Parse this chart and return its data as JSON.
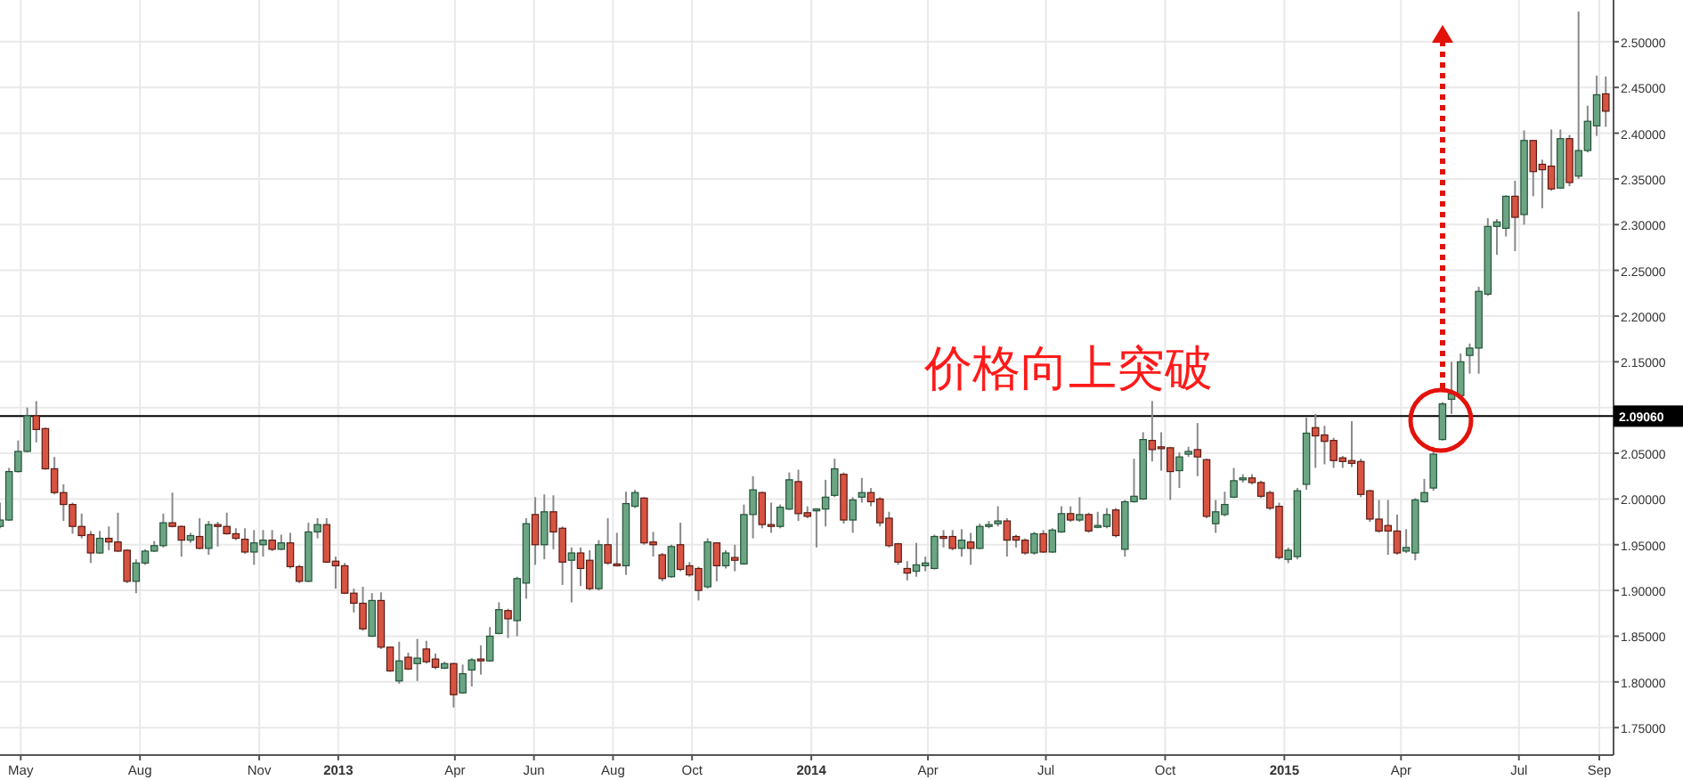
{
  "chart_data": {
    "type": "candlestick",
    "x": [
      "2012-04-15",
      "2012-04-22",
      "2012-04-29",
      "2012-05-06",
      "2012-05-13",
      "2012-05-20",
      "2012-05-27",
      "2012-06-03",
      "2012-06-10",
      "2012-06-17",
      "2012-06-24",
      "2012-07-01",
      "2012-07-08",
      "2012-07-15",
      "2012-07-22",
      "2012-07-29",
      "2012-08-05",
      "2012-08-12",
      "2012-08-19",
      "2012-08-26",
      "2012-09-02",
      "2012-09-09",
      "2012-09-16",
      "2012-09-23",
      "2012-09-30",
      "2012-10-07",
      "2012-10-14",
      "2012-10-21",
      "2012-10-28",
      "2012-11-04",
      "2012-11-11",
      "2012-11-18",
      "2012-11-25",
      "2012-12-02",
      "2012-12-09",
      "2012-12-16",
      "2012-12-23",
      "2012-12-30",
      "2013-01-06",
      "2013-01-13",
      "2013-01-20",
      "2013-01-27",
      "2013-02-03",
      "2013-02-10",
      "2013-02-17",
      "2013-02-24",
      "2013-03-03",
      "2013-03-10",
      "2013-03-17",
      "2013-03-24",
      "2013-03-31",
      "2013-04-07",
      "2013-04-14",
      "2013-04-21",
      "2013-04-28",
      "2013-05-05",
      "2013-05-12",
      "2013-05-19",
      "2013-05-26",
      "2013-06-02",
      "2013-06-09",
      "2013-06-16",
      "2013-06-23",
      "2013-06-30",
      "2013-07-07",
      "2013-07-14",
      "2013-07-21",
      "2013-07-28",
      "2013-08-04",
      "2013-08-11",
      "2013-08-18",
      "2013-08-25",
      "2013-09-01",
      "2013-09-08",
      "2013-09-15",
      "2013-09-22",
      "2013-09-29",
      "2013-10-06",
      "2013-10-13",
      "2013-10-20",
      "2013-10-27",
      "2013-11-03",
      "2013-11-10",
      "2013-11-17",
      "2013-11-24",
      "2013-12-01",
      "2013-12-08",
      "2013-12-15",
      "2013-12-22",
      "2013-12-29",
      "2014-01-05",
      "2014-01-12",
      "2014-01-19",
      "2014-01-26",
      "2014-02-02",
      "2014-02-09",
      "2014-02-16",
      "2014-02-23",
      "2014-03-02",
      "2014-03-09",
      "2014-03-16",
      "2014-03-23",
      "2014-03-30",
      "2014-04-06",
      "2014-04-13",
      "2014-04-20",
      "2014-04-27",
      "2014-05-04",
      "2014-05-11",
      "2014-05-18",
      "2014-05-25",
      "2014-06-01",
      "2014-06-08",
      "2014-06-15",
      "2014-06-22",
      "2014-06-29",
      "2014-07-06",
      "2014-07-13",
      "2014-07-20",
      "2014-07-27",
      "2014-08-03",
      "2014-08-10",
      "2014-08-17",
      "2014-08-24",
      "2014-08-31",
      "2014-09-07",
      "2014-09-14",
      "2014-09-21",
      "2014-09-28",
      "2014-10-05",
      "2014-10-12",
      "2014-10-19",
      "2014-10-26",
      "2014-11-02",
      "2014-11-09",
      "2014-11-16",
      "2014-11-23",
      "2014-11-30",
      "2014-12-07",
      "2014-12-14",
      "2014-12-21",
      "2014-12-28",
      "2015-01-04",
      "2015-01-11",
      "2015-01-18",
      "2015-01-25",
      "2015-02-01",
      "2015-02-08",
      "2015-02-15",
      "2015-02-22",
      "2015-03-01",
      "2015-03-08",
      "2015-03-15",
      "2015-03-22",
      "2015-03-29",
      "2015-04-05",
      "2015-04-12",
      "2015-04-19",
      "2015-04-26",
      "2015-05-03",
      "2015-05-10",
      "2015-05-17",
      "2015-05-24",
      "2015-05-31",
      "2015-06-07",
      "2015-06-14",
      "2015-06-21",
      "2015-06-28",
      "2015-07-05",
      "2015-07-12",
      "2015-07-19",
      "2015-07-26",
      "2015-08-02",
      "2015-08-09",
      "2015-08-16",
      "2015-08-23",
      "2015-08-30",
      "2015-09-06"
    ],
    "ohlc": [
      [
        1.97,
        1.996,
        1.968,
        1.977
      ],
      [
        1.977,
        2.034,
        1.976,
        2.03
      ],
      [
        2.03,
        2.064,
        2.029,
        2.052
      ],
      [
        2.052,
        2.1,
        2.051,
        2.091
      ],
      [
        2.091,
        2.107,
        2.062,
        2.076
      ],
      [
        2.077,
        2.078,
        2.032,
        2.033
      ],
      [
        2.033,
        2.046,
        2.005,
        2.007
      ],
      [
        2.007,
        2.016,
        1.976,
        1.994
      ],
      [
        1.994,
        1.996,
        1.962,
        1.97
      ],
      [
        1.97,
        1.984,
        1.957,
        1.96
      ],
      [
        1.961,
        1.965,
        1.93,
        1.941
      ],
      [
        1.941,
        1.965,
        1.94,
        1.957
      ],
      [
        1.957,
        1.97,
        1.944,
        1.953
      ],
      [
        1.953,
        1.985,
        1.942,
        1.943
      ],
      [
        1.944,
        1.945,
        1.908,
        1.91
      ],
      [
        1.91,
        1.934,
        1.897,
        1.93
      ],
      [
        1.93,
        1.945,
        1.928,
        1.943
      ],
      [
        1.943,
        1.954,
        1.942,
        1.949
      ],
      [
        1.949,
        1.984,
        1.947,
        1.974
      ],
      [
        1.974,
        2.007,
        1.969,
        1.97
      ],
      [
        1.97,
        1.971,
        1.937,
        1.955
      ],
      [
        1.955,
        1.963,
        1.952,
        1.96
      ],
      [
        1.959,
        1.979,
        1.945,
        1.946
      ],
      [
        1.946,
        1.976,
        1.939,
        1.972
      ],
      [
        1.972,
        1.975,
        1.948,
        1.97
      ],
      [
        1.97,
        1.985,
        1.961,
        1.962
      ],
      [
        1.962,
        1.968,
        1.955,
        1.957
      ],
      [
        1.956,
        1.968,
        1.94,
        1.942
      ],
      [
        1.942,
        1.966,
        1.928,
        1.952
      ],
      [
        1.95,
        1.966,
        1.937,
        1.955
      ],
      [
        1.955,
        1.966,
        1.943,
        1.945
      ],
      [
        1.945,
        1.961,
        1.944,
        1.952
      ],
      [
        1.952,
        1.963,
        1.924,
        1.926
      ],
      [
        1.926,
        1.928,
        1.908,
        1.91
      ],
      [
        1.91,
        1.974,
        1.909,
        1.964
      ],
      [
        1.964,
        1.979,
        1.957,
        1.972
      ],
      [
        1.972,
        1.979,
        1.93,
        1.931
      ],
      [
        1.932,
        1.937,
        1.902,
        1.927
      ],
      [
        1.927,
        1.93,
        1.896,
        1.897
      ],
      [
        1.897,
        1.902,
        1.876,
        1.886
      ],
      [
        1.886,
        1.904,
        1.856,
        1.858
      ],
      [
        1.85,
        1.897,
        1.849,
        1.889
      ],
      [
        1.889,
        1.898,
        1.836,
        1.838
      ],
      [
        1.838,
        1.838,
        1.811,
        1.812
      ],
      [
        1.801,
        1.844,
        1.798,
        1.823
      ],
      [
        1.827,
        1.832,
        1.813,
        1.814
      ],
      [
        1.82,
        1.847,
        1.801,
        1.826
      ],
      [
        1.836,
        1.845,
        1.82,
        1.822
      ],
      [
        1.825,
        1.831,
        1.814,
        1.816
      ],
      [
        1.815,
        1.822,
        1.814,
        1.82
      ],
      [
        1.82,
        1.821,
        1.772,
        1.786
      ],
      [
        1.788,
        1.819,
        1.787,
        1.809
      ],
      [
        1.813,
        1.826,
        1.795,
        1.824
      ],
      [
        1.825,
        1.84,
        1.808,
        1.823
      ],
      [
        1.823,
        1.86,
        1.822,
        1.85
      ],
      [
        1.853,
        1.887,
        1.852,
        1.879
      ],
      [
        1.878,
        1.88,
        1.848,
        1.869
      ],
      [
        1.867,
        1.915,
        1.85,
        1.913
      ],
      [
        1.908,
        1.979,
        1.891,
        1.973
      ],
      [
        1.983,
        2.002,
        1.928,
        1.95
      ],
      [
        1.95,
        2.005,
        1.934,
        1.986
      ],
      [
        1.986,
        2.004,
        1.945,
        1.964
      ],
      [
        1.968,
        1.97,
        1.906,
        1.931
      ],
      [
        1.933,
        1.947,
        1.887,
        1.941
      ],
      [
        1.941,
        1.947,
        1.905,
        1.924
      ],
      [
        1.933,
        1.944,
        1.9,
        1.902
      ],
      [
        1.902,
        1.955,
        1.9,
        1.95
      ],
      [
        1.95,
        1.979,
        1.928,
        1.93
      ],
      [
        1.929,
        1.963,
        1.926,
        1.927
      ],
      [
        1.927,
        2.008,
        1.917,
        1.995
      ],
      [
        1.992,
        2.01,
        1.99,
        2.007
      ],
      [
        2.001,
        2.002,
        1.95,
        1.952
      ],
      [
        1.953,
        1.964,
        1.937,
        1.95
      ],
      [
        1.939,
        1.941,
        1.91,
        1.913
      ],
      [
        1.915,
        1.95,
        1.914,
        1.948
      ],
      [
        1.95,
        1.974,
        1.921,
        1.923
      ],
      [
        1.927,
        1.931,
        1.915,
        1.917
      ],
      [
        1.924,
        1.926,
        1.889,
        1.9
      ],
      [
        1.904,
        1.957,
        1.902,
        1.953
      ],
      [
        1.952,
        1.952,
        1.91,
        1.927
      ],
      [
        1.927,
        1.944,
        1.924,
        1.941
      ],
      [
        1.936,
        1.95,
        1.921,
        1.933
      ],
      [
        1.929,
        1.994,
        1.928,
        1.983
      ],
      [
        1.983,
        2.025,
        1.957,
        2.01
      ],
      [
        2.007,
        2.008,
        1.968,
        1.972
      ],
      [
        1.972,
        1.996,
        1.963,
        1.97
      ],
      [
        1.97,
        1.994,
        1.968,
        1.991
      ],
      [
        1.989,
        2.029,
        1.988,
        2.021
      ],
      [
        2.019,
        2.032,
        1.976,
        1.984
      ],
      [
        1.985,
        1.992,
        1.979,
        1.981
      ],
      [
        1.988,
        1.99,
        1.947,
        1.989
      ],
      [
        1.989,
        2.021,
        1.97,
        2.002
      ],
      [
        2.004,
        2.044,
        2.002,
        2.033
      ],
      [
        2.027,
        2.029,
        1.973,
        1.977
      ],
      [
        1.977,
        2.002,
        1.963,
        1.999
      ],
      [
        2.002,
        2.023,
        1.996,
        2.007
      ],
      [
        2.007,
        2.012,
        1.992,
        1.997
      ],
      [
        2.0,
        2.002,
        1.97,
        1.974
      ],
      [
        1.979,
        1.986,
        1.947,
        1.949
      ],
      [
        1.951,
        1.952,
        1.928,
        1.931
      ],
      [
        1.924,
        1.932,
        1.911,
        1.919
      ],
      [
        1.921,
        1.952,
        1.915,
        1.928
      ],
      [
        1.927,
        1.937,
        1.921,
        1.93
      ],
      [
        1.924,
        1.961,
        1.923,
        1.959
      ],
      [
        1.959,
        1.966,
        1.947,
        1.957
      ],
      [
        1.959,
        1.966,
        1.944,
        1.946
      ],
      [
        1.946,
        1.967,
        1.937,
        1.955
      ],
      [
        1.953,
        1.963,
        1.928,
        1.946
      ],
      [
        1.946,
        1.973,
        1.945,
        1.97
      ],
      [
        1.97,
        1.976,
        1.968,
        1.972
      ],
      [
        1.973,
        1.992,
        1.97,
        1.976
      ],
      [
        1.976,
        1.979,
        1.937,
        1.955
      ],
      [
        1.959,
        1.961,
        1.947,
        1.955
      ],
      [
        1.955,
        1.957,
        1.939,
        1.941
      ],
      [
        1.941,
        1.964,
        1.939,
        1.962
      ],
      [
        1.962,
        1.966,
        1.941,
        1.942
      ],
      [
        1.942,
        1.968,
        1.941,
        1.966
      ],
      [
        1.964,
        1.992,
        1.963,
        1.984
      ],
      [
        1.984,
        1.992,
        1.975,
        1.977
      ],
      [
        1.977,
        2.002,
        1.975,
        1.983
      ],
      [
        1.983,
        1.985,
        1.963,
        1.965
      ],
      [
        1.97,
        1.986,
        1.968,
        1.971
      ],
      [
        1.97,
        1.99,
        1.968,
        1.983
      ],
      [
        1.988,
        1.99,
        1.958,
        1.96
      ],
      [
        1.945,
        1.999,
        1.937,
        1.997
      ],
      [
        1.997,
        2.044,
        1.996,
        2.003
      ],
      [
        2.0,
        2.073,
        1.999,
        2.065
      ],
      [
        2.064,
        2.107,
        2.041,
        2.054
      ],
      [
        2.057,
        2.073,
        2.031,
        2.055
      ],
      [
        2.056,
        2.057,
        1.999,
        2.03
      ],
      [
        2.031,
        2.051,
        2.012,
        2.046
      ],
      [
        2.049,
        2.057,
        2.046,
        2.052
      ],
      [
        2.054,
        2.083,
        2.025,
        2.046
      ],
      [
        2.043,
        2.044,
        1.979,
        1.981
      ],
      [
        1.973,
        1.999,
        1.963,
        1.986
      ],
      [
        1.983,
        2.008,
        1.981,
        1.994
      ],
      [
        2.002,
        2.034,
        2.001,
        2.02
      ],
      [
        2.021,
        2.027,
        2.018,
        2.023
      ],
      [
        2.023,
        2.027,
        2.016,
        2.018
      ],
      [
        2.018,
        2.02,
        2.001,
        2.003
      ],
      [
        2.007,
        2.009,
        1.988,
        1.99
      ],
      [
        1.992,
        1.996,
        1.934,
        1.936
      ],
      [
        1.934,
        1.947,
        1.93,
        1.944
      ],
      [
        1.937,
        2.012,
        1.934,
        2.009
      ],
      [
        2.016,
        2.089,
        2.01,
        2.072
      ],
      [
        2.078,
        2.093,
        2.034,
        2.069
      ],
      [
        2.07,
        2.08,
        2.038,
        2.063
      ],
      [
        2.064,
        2.067,
        2.034,
        2.042
      ],
      [
        2.045,
        2.047,
        2.034,
        2.041
      ],
      [
        2.042,
        2.085,
        2.035,
        2.039
      ],
      [
        2.041,
        2.044,
        2.002,
        2.005
      ],
      [
        2.009,
        2.01,
        1.975,
        1.978
      ],
      [
        1.978,
        1.999,
        1.963,
        1.965
      ],
      [
        1.971,
        1.999,
        1.939,
        1.965
      ],
      [
        1.965,
        1.983,
        1.939,
        1.941
      ],
      [
        1.943,
        1.967,
        1.941,
        1.947
      ],
      [
        1.941,
        2.001,
        1.933,
        1.999
      ],
      [
        1.997,
        2.022,
        1.996,
        2.007
      ],
      [
        2.012,
        2.057,
        2.009,
        2.049
      ],
      [
        2.065,
        2.106,
        2.064,
        2.104
      ],
      [
        2.109,
        2.15,
        2.093,
        2.115
      ],
      [
        2.113,
        2.159,
        2.112,
        2.15
      ],
      [
        2.157,
        2.17,
        2.137,
        2.165
      ],
      [
        2.165,
        2.232,
        2.137,
        2.227
      ],
      [
        2.224,
        2.307,
        2.222,
        2.298
      ],
      [
        2.298,
        2.306,
        2.267,
        2.303
      ],
      [
        2.296,
        2.332,
        2.287,
        2.331
      ],
      [
        2.331,
        2.348,
        2.271,
        2.308
      ],
      [
        2.311,
        2.403,
        2.3,
        2.392
      ],
      [
        2.392,
        2.392,
        2.331,
        2.358
      ],
      [
        2.366,
        2.371,
        2.318,
        2.36
      ],
      [
        2.364,
        2.404,
        2.337,
        2.339
      ],
      [
        2.34,
        2.404,
        2.339,
        2.394
      ],
      [
        2.394,
        2.398,
        2.342,
        2.346
      ],
      [
        2.353,
        2.533,
        2.35,
        2.381
      ],
      [
        2.381,
        2.43,
        2.379,
        2.413
      ],
      [
        2.408,
        2.463,
        2.397,
        2.442
      ],
      [
        2.443,
        2.462,
        2.407,
        2.424
      ]
    ],
    "xlim": [
      "2012-04-15",
      "2015-09-12"
    ],
    "xticks": [
      {
        "value": "2012-05-01",
        "label": "May"
      },
      {
        "value": "2012-08-01",
        "label": "Aug"
      },
      {
        "value": "2012-11-01",
        "label": "Nov"
      },
      {
        "value": "2013-01-01",
        "label": "2013"
      },
      {
        "value": "2013-04-01",
        "label": "Apr"
      },
      {
        "value": "2013-06-01",
        "label": "Jun"
      },
      {
        "value": "2013-08-01",
        "label": "Aug"
      },
      {
        "value": "2013-10-01",
        "label": "Oct"
      },
      {
        "value": "2014-01-01",
        "label": "2014"
      },
      {
        "value": "2014-04-01",
        "label": "Apr"
      },
      {
        "value": "2014-07-01",
        "label": "Jul"
      },
      {
        "value": "2014-10-01",
        "label": "Oct"
      },
      {
        "value": "2015-01-01",
        "label": "2015"
      },
      {
        "value": "2015-04-01",
        "label": "Apr"
      },
      {
        "value": "2015-07-01",
        "label": "Jul"
      },
      {
        "value": "2015-09-01",
        "label": "Sep"
      }
    ],
    "ylim": [
      1.72,
      2.5456
    ],
    "yticks": [
      {
        "value": 1.75,
        "label": "1.75000"
      },
      {
        "value": 1.8,
        "label": "1.80000"
      },
      {
        "value": 1.85,
        "label": "1.85000"
      },
      {
        "value": 1.9,
        "label": "1.90000"
      },
      {
        "value": 1.95,
        "label": "1.95000"
      },
      {
        "value": 2.0,
        "label": "2.00000"
      },
      {
        "value": 2.05,
        "label": "2.05000"
      },
      {
        "value": 2.1,
        "label": null
      },
      {
        "value": 2.15,
        "label": "2.15000"
      },
      {
        "value": 2.2,
        "label": "2.20000"
      },
      {
        "value": 2.25,
        "label": "2.25000"
      },
      {
        "value": 2.3,
        "label": "2.30000"
      },
      {
        "value": 2.35,
        "label": "2.35000"
      },
      {
        "value": 2.4,
        "label": "2.40000"
      },
      {
        "value": 2.45,
        "label": "2.45000"
      },
      {
        "value": 2.5,
        "label": "2.50000"
      }
    ],
    "grid": true,
    "ref_lines": [
      {
        "axis": "y",
        "value": 2.0906,
        "label": "2.09060",
        "color": "#000000"
      }
    ],
    "annotations": [
      "价格向上突破"
    ]
  }
}
